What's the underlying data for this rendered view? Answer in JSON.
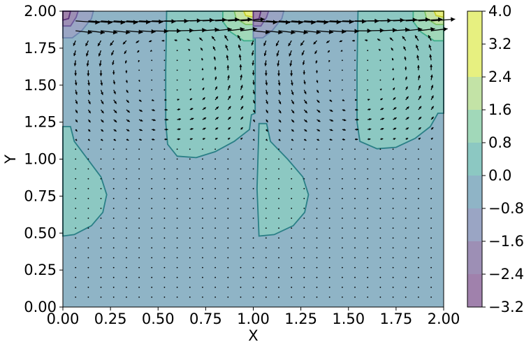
{
  "chart_data": {
    "type": "contour+quiver",
    "xlabel": "X",
    "ylabel": "Y",
    "xlim": [
      0,
      2
    ],
    "ylim": [
      0,
      2
    ],
    "x_ticks": [
      "0.00",
      "0.25",
      "0.50",
      "0.75",
      "1.00",
      "1.25",
      "1.50",
      "1.75",
      "2.00"
    ],
    "y_ticks": [
      "0.00",
      "0.25",
      "0.50",
      "0.75",
      "1.00",
      "1.25",
      "1.50",
      "1.75",
      "2.00"
    ],
    "colorbar": {
      "levels": [
        -3.2,
        -2.4,
        -1.6,
        -0.8,
        0.0,
        0.8,
        1.6,
        2.4,
        3.2,
        4.0
      ],
      "tick_labels": [
        "−3.2",
        "−2.4",
        "−1.6",
        "−0.8",
        "0.0",
        "0.8",
        "1.6",
        "2.4",
        "3.2",
        "4.0"
      ],
      "band_colors": [
        "#a081ac",
        "#9d8fb5",
        "#9aa5c4",
        "#8fb4c6",
        "#8cc8c2",
        "#a1d8b9",
        "#c3e3a6",
        "#e7f080"
      ],
      "outer_band_colors": {
        "below_0": "#a081ac",
        "above_3.2": "#e7f080"
      }
    },
    "contour_regions": [
      {
        "level_band": "0.0 to 0.8",
        "cells": [
          "x 0.55-1.0, y 1.0-2.0",
          "x 1.55-2.0, y 1.1-2.0",
          "x 0.0-0.25, y 0.48-1.22",
          "x 1.03-1.3, y 0.48-1.25"
        ]
      },
      {
        "level_band": "0.8 to 4.0",
        "cells": [
          "near (0.97, 1.95)",
          "near (1.97, 1.95)"
        ]
      },
      {
        "level_band": "-3.2 to 0.0",
        "cells": [
          "near (0.03, 1.95)",
          "near (1.03, 1.95)"
        ]
      }
    ],
    "quiver": {
      "description": "two counter-clockwise recirculation cells in upper half, strong rightward flow along top lid",
      "cell_centers": [
        [
          0.55,
          1.6
        ],
        [
          1.55,
          1.6
        ]
      ]
    }
  }
}
